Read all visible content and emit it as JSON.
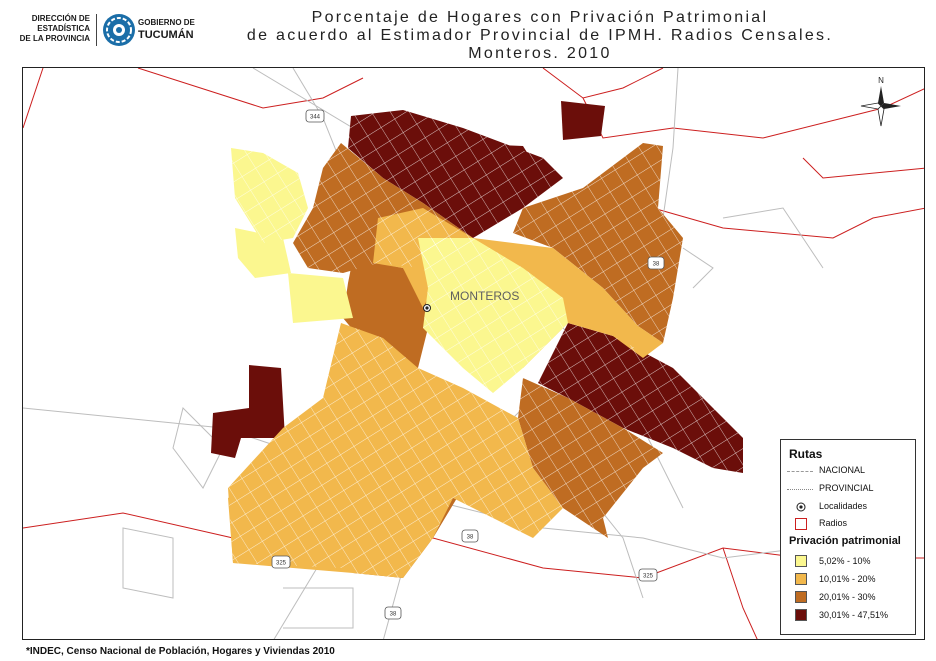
{
  "header": {
    "org_line1": "DIRECCIÓN DE",
    "org_line2": "ESTADÍSTICA",
    "org_line3": "DE LA PROVINCIA",
    "gov_line1": "GOBIERNO DE",
    "gov_line2": "TUCUMÁN",
    "title_line1": "Porcentaje de Hogares con Privación Patrimonial",
    "title_line2": "de acuerdo al Estimador Provincial de IPMH. Radios Censales.",
    "title_line3": "Monteros. 2010"
  },
  "map": {
    "place_label": "MONTEROS",
    "north_label": "N",
    "route_shields": [
      "344",
      "38",
      "38",
      "38",
      "325",
      "325"
    ],
    "classes": [
      {
        "range": "5,02% - 10%",
        "color": "#fbf78f"
      },
      {
        "range": "10,01% - 20%",
        "color": "#f2b84c"
      },
      {
        "range": "20,01% - 30%",
        "color": "#bf6c22"
      },
      {
        "range": "30,01% - 47,51%",
        "color": "#6b0e0a"
      }
    ]
  },
  "legend": {
    "routes_title": "Rutas",
    "national": "NACIONAL",
    "provincial": "PROVINCIAL",
    "localities": "Localidades",
    "radios": "Radios",
    "privation_title": "Privación patrimonial"
  },
  "footer": {
    "source": "*INDEC, Censo Nacional de Población, Hogares y Viviendas 2010"
  }
}
